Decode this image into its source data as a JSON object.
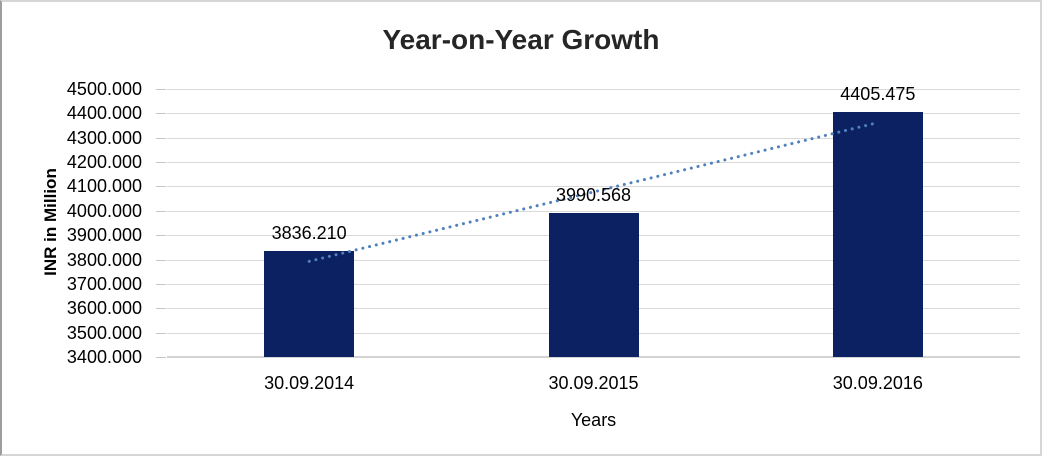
{
  "chart_data": {
    "type": "bar",
    "title": "Year-on-Year Growth",
    "xlabel": "Years",
    "ylabel": "INR in Million",
    "categories": [
      "30.09.2014",
      "30.09.2015",
      "30.09.2016"
    ],
    "values": [
      3836.21,
      3990.568,
      4405.475
    ],
    "data_labels": [
      "3836.210",
      "3990.568",
      "4405.475"
    ],
    "ylim": [
      3400,
      4500
    ],
    "ytick_step": 100,
    "ytick_labels": [
      "4500.000",
      "4400.000",
      "4300.000",
      "4200.000",
      "4100.000",
      "4000.000",
      "3900.000",
      "3800.000",
      "3700.000",
      "3600.000",
      "3500.000",
      "3400.000"
    ],
    "grid": true,
    "legend": "none",
    "trendline": {
      "kind": "linear",
      "style": "dotted",
      "fit_endpoint_values": [
        3792.8,
        4362.0
      ]
    },
    "colors": {
      "bar": "#0b2161",
      "trendline": "#4f81bd",
      "gridline": "#d9d9d9",
      "axis_line": "#d3d3d3",
      "tick_mark": "#c6c6c6",
      "text": "#000000",
      "title_text": "#262626",
      "background": "#ffffff"
    }
  }
}
